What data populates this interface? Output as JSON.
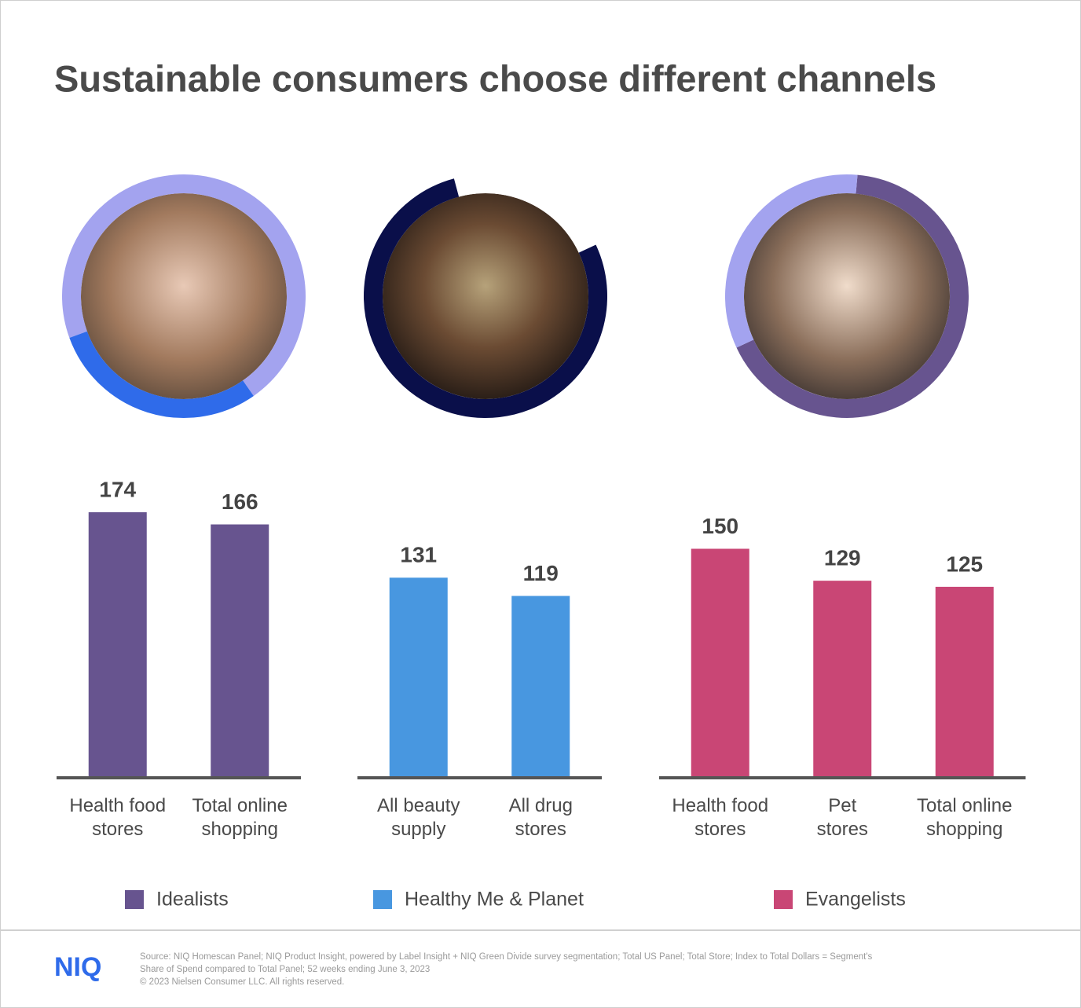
{
  "title": "Sustainable consumers choose different channels",
  "chart_data": [
    {
      "type": "bar",
      "categories": [
        "Health food stores",
        "Total online shopping"
      ],
      "series": [
        {
          "name": "Idealists",
          "color": "#67548f",
          "values": [
            174,
            166
          ]
        }
      ]
    },
    {
      "type": "bar",
      "categories": [
        "All beauty supply",
        "All drug stores"
      ],
      "series": [
        {
          "name": "Healthy Me & Planet",
          "color": "#4897e0",
          "values": [
            131,
            119
          ]
        }
      ]
    },
    {
      "type": "bar",
      "categories": [
        "Health food stores",
        "Pet stores",
        "Total online shopping"
      ],
      "series": [
        {
          "name": "Evangelists",
          "color": "#c94675",
          "values": [
            150,
            129,
            125
          ]
        }
      ]
    }
  ],
  "footer": {
    "logo": "NIQ",
    "source": [
      "Source: NIQ Homescan Panel; NIQ Product Insight, powered by Label Insight + NIQ Green Divide survey segmentation; Total US Panel; Total Store; Index to Total Dollars = Segment's",
      "Share of Spend compared to Total Panel; 52 weeks ending June 3, 2023",
      "© 2023 Nielsen Consumer LLC. All rights reserved."
    ]
  }
}
